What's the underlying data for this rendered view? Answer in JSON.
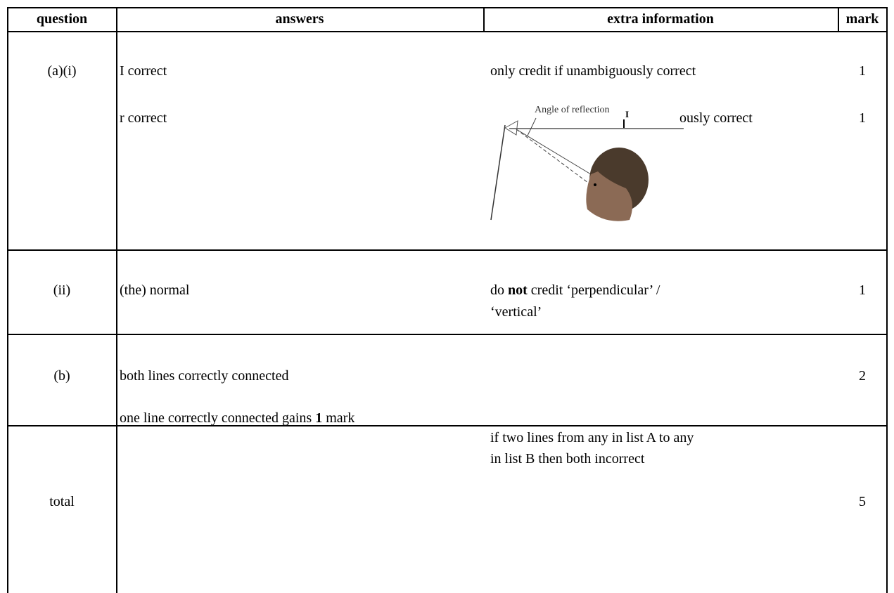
{
  "header": {
    "columns": [
      "question",
      "answers",
      "extra information",
      "mark"
    ]
  },
  "rows": [
    {
      "question": "(a)(i)",
      "answers": [
        "I correct",
        "r correct"
      ],
      "extra": [
        "only credit if unambiguously correct",
        "ously correct"
      ],
      "figure": {
        "label": "Angle of reflection",
        "ray": "I"
      },
      "marks": [
        1,
        1
      ]
    },
    {
      "question": "(ii)",
      "answers": [
        "(the) normal"
      ],
      "extra": [
        [
          "do ",
          "not",
          " credit ‘perpendicular’ /"
        ],
        "‘vertical’"
      ],
      "marks": [
        1
      ]
    },
    {
      "question": "(b)",
      "answers": [
        "both lines correctly connected",
        [
          "one line correctly connected gains ",
          "1",
          " mark"
        ]
      ],
      "extra": [
        "if two lines from any in list A to any",
        "in list B then both incorrect"
      ],
      "marks": [
        2
      ]
    },
    {
      "question": "total",
      "marks": [
        5
      ]
    }
  ]
}
